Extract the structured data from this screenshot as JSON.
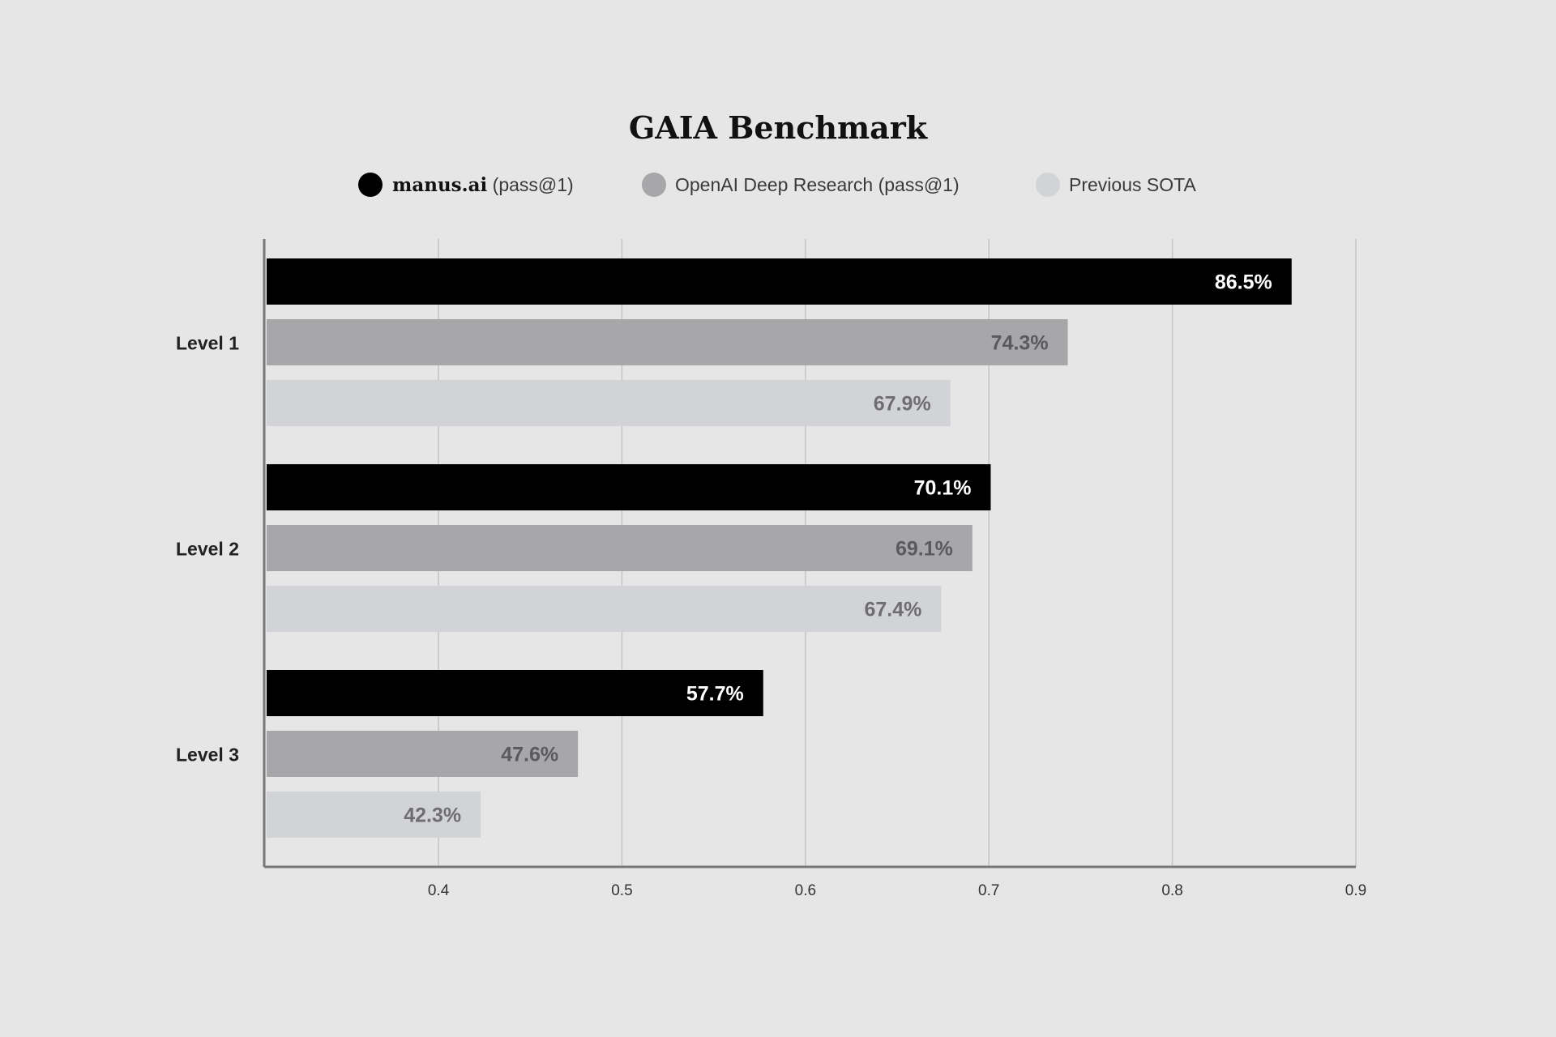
{
  "chart_data": {
    "type": "bar",
    "orientation": "horizontal",
    "title": "GAIA Benchmark",
    "categories": [
      "Level 1",
      "Level 2",
      "Level 3"
    ],
    "series": [
      {
        "name": "manus.ai (pass@1)",
        "name_brand": "manus.ai",
        "name_suffix": "(pass@1)",
        "color": "#000000",
        "label_color": "#ffffff",
        "values": [
          0.865,
          0.701,
          0.577
        ],
        "labels": [
          "86.5%",
          "70.1%",
          "57.7%"
        ]
      },
      {
        "name": "OpenAI Deep Research (pass@1)",
        "color": "#a7a7aa",
        "label_color": "#5a5a5c",
        "values": [
          0.743,
          0.691,
          0.476
        ],
        "labels": [
          "74.3%",
          "69.1%",
          "47.6%"
        ]
      },
      {
        "name": "Previous SOTA",
        "color": "#d2d3d6",
        "label_color": "#6e6e70",
        "values": [
          0.679,
          0.674,
          0.423
        ],
        "labels": [
          "67.9%",
          "67.4%",
          "42.3%"
        ]
      }
    ],
    "xlim": [
      0.305,
      0.9
    ],
    "xticks": [
      0.4,
      0.5,
      0.6,
      0.7,
      0.8,
      0.9
    ],
    "xtick_labels": [
      "0.4",
      "0.5",
      "0.6",
      "0.7",
      "0.8",
      "0.9"
    ],
    "grid": true,
    "legend": "top-center",
    "xlabel": "",
    "ylabel": ""
  }
}
